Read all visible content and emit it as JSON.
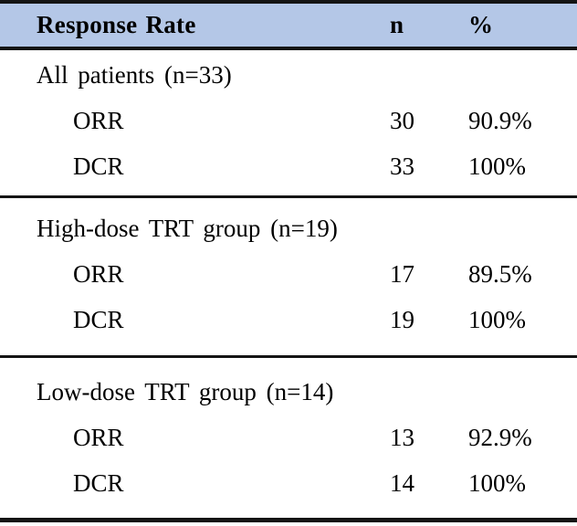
{
  "colors": {
    "header_bg": "#b4c7e7",
    "rule": "#141414",
    "text": "#000000"
  },
  "table": {
    "header": {
      "response_rate": "Response Rate",
      "n": "n",
      "percent": "%"
    },
    "sections": [
      {
        "title": "All patients (n=33)",
        "rows": [
          {
            "label": "ORR",
            "n": "30",
            "pct": "90.9%"
          },
          {
            "label": "DCR",
            "n": "33",
            "pct": "100%"
          }
        ]
      },
      {
        "title": "High-dose TRT group (n=19)",
        "rows": [
          {
            "label": "ORR",
            "n": "17",
            "pct": "89.5%"
          },
          {
            "label": "DCR",
            "n": "19",
            "pct": "100%"
          }
        ]
      },
      {
        "title": "Low-dose TRT group (n=14)",
        "rows": [
          {
            "label": "ORR",
            "n": "13",
            "pct": "92.9%"
          },
          {
            "label": "DCR",
            "n": "14",
            "pct": "100%"
          }
        ]
      }
    ]
  }
}
